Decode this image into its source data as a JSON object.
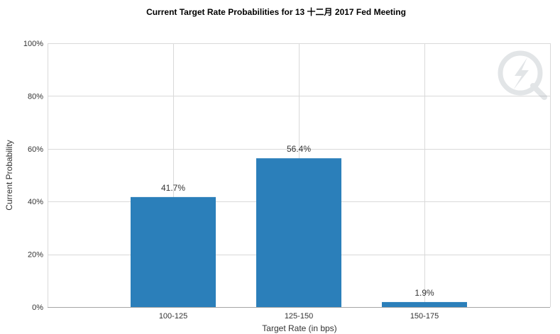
{
  "chart_data": {
    "type": "bar",
    "title": "Current Target Rate Probabilities for 13 十二月 2017  Fed Meeting",
    "xlabel": "Target Rate (in bps)",
    "ylabel": "Current Probability",
    "categories": [
      "100-125",
      "125-150",
      "150-175"
    ],
    "values": [
      41.7,
      56.4,
      1.9
    ],
    "data_labels": [
      "41.7%",
      "56.4%",
      "1.9%"
    ],
    "y_ticks": [
      "0%",
      "20%",
      "40%",
      "60%",
      "80%",
      "100%"
    ],
    "ylim": [
      0,
      100
    ],
    "grid": true,
    "bar_color": "#2b7fba"
  },
  "watermark": {
    "icon": "lightning-q-watermark-icon"
  }
}
